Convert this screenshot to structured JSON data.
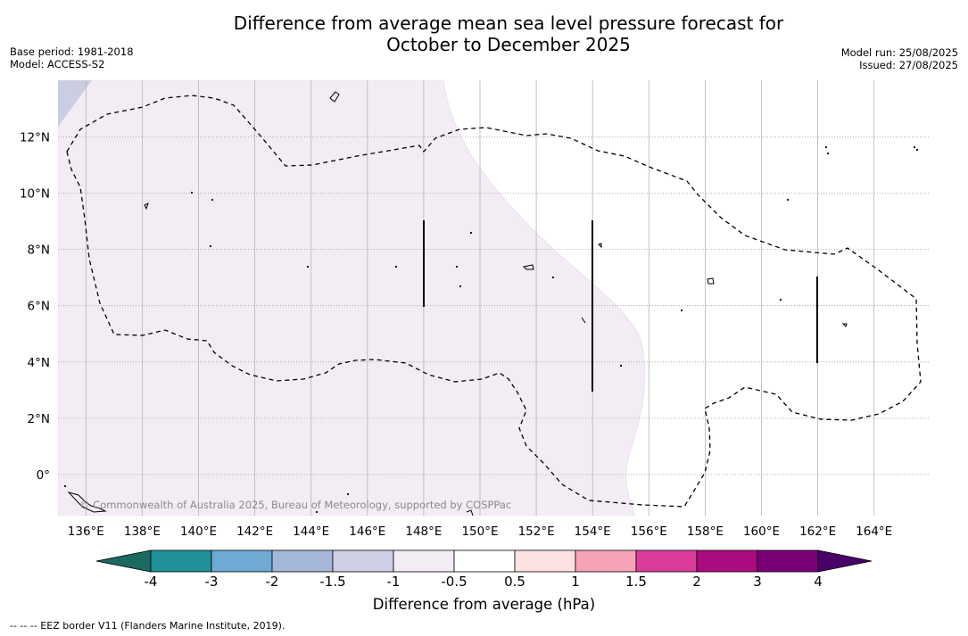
{
  "title": {
    "line1": "Difference from average mean sea level pressure forecast for",
    "line2": "October to December 2025"
  },
  "meta_left": {
    "base_period": "Base period: 1981-2018",
    "model": "Model: ACCESS-S2"
  },
  "meta_right": {
    "model_run": "Model run: 25/08/2025",
    "issued": "Issued: 27/08/2025"
  },
  "map": {
    "lon_labels": [
      "136°E",
      "138°E",
      "140°E",
      "142°E",
      "144°E",
      "146°E",
      "148°E",
      "150°E",
      "152°E",
      "154°E",
      "156°E",
      "158°E",
      "160°E",
      "162°E",
      "164°E"
    ],
    "lat_labels": [
      "12°N",
      "10°N",
      "8°N",
      "6°N",
      "4°N",
      "2°N",
      "0°"
    ],
    "copyright": "© Commonwealth of Australia 2025, Bureau of Meteorology, supported by COSPPac",
    "fill_color_light": "#f3ecf5",
    "fill_color_blue": "#cbcde3"
  },
  "colorbar": {
    "tick_labels": [
      "-4",
      "-3",
      "-2",
      "-1.5",
      "-1",
      "-0.5",
      "0.5",
      "1",
      "1.5",
      "2",
      "3",
      "4"
    ],
    "colors": [
      "#1a6a62",
      "#1f9198",
      "#6eaad4",
      "#a6b8d8",
      "#cfd0e6",
      "#f3ecf5",
      "#ffffff",
      "#fde2e2",
      "#f6a3b8",
      "#db3c9c",
      "#ac0b7f",
      "#7a0077",
      "#4a0068"
    ],
    "label": "Difference from average (hPa)"
  },
  "footer": "--  --  -- EEZ border V11 (Flanders Marine Institute, 2019)."
}
